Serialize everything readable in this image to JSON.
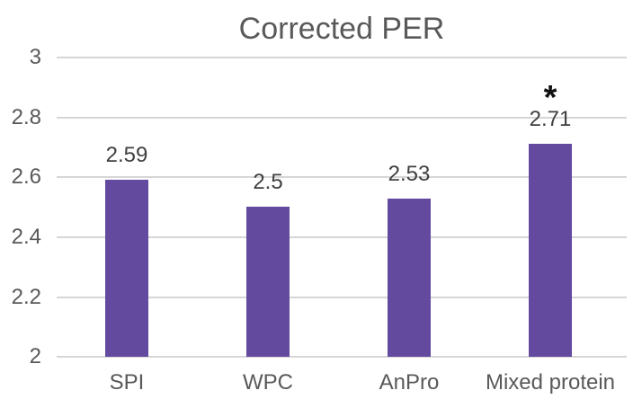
{
  "chart_data": {
    "type": "bar",
    "title": "Corrected PER",
    "categories": [
      "SPI",
      "WPC",
      "AnPro",
      "Mixed protein"
    ],
    "values": [
      2.59,
      2.5,
      2.53,
      2.71
    ],
    "data_labels": [
      "2.59",
      "2.5",
      "2.53",
      "2.71"
    ],
    "significance": {
      "category": "Mixed protein",
      "marker": "*"
    },
    "xlabel": "",
    "ylabel": "",
    "ylim": [
      2,
      3
    ],
    "ytick_step": 0.2,
    "yticks": [
      "3",
      "2.8",
      "2.6",
      "2.4",
      "2.2",
      "2"
    ],
    "grid": true,
    "legend": false,
    "colors": {
      "bar": "#644a9f",
      "gridline": "#d6d6d6",
      "title_text": "#595959",
      "axis_text": "#595959",
      "data_label_text": "#404040",
      "significance_marker": "#111111",
      "background": "#ffffff"
    }
  }
}
